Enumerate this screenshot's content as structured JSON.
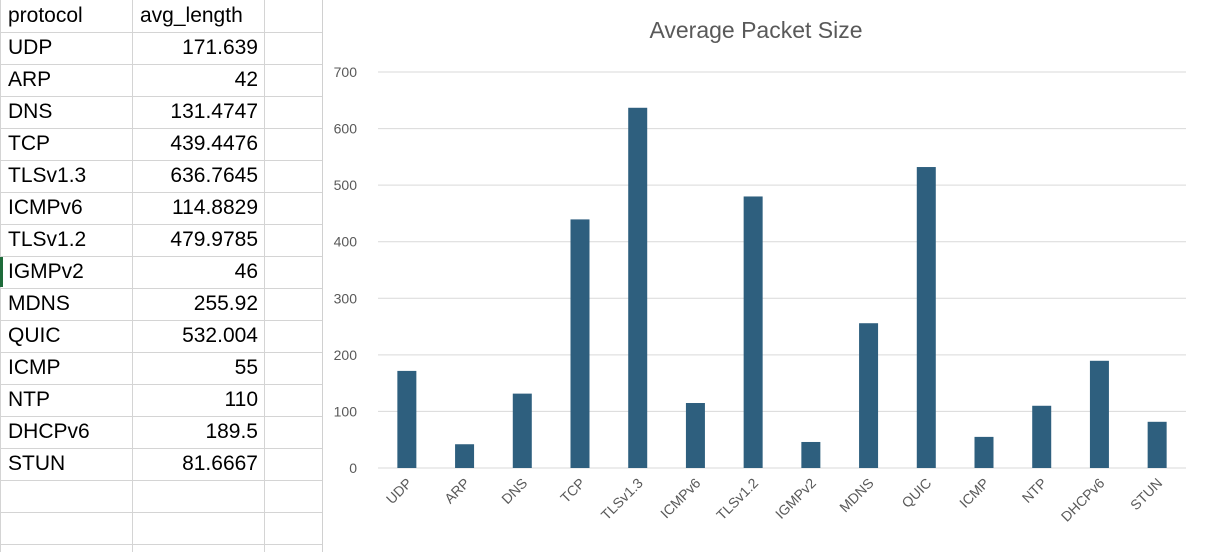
{
  "sheet": {
    "headers": [
      "protocol",
      "avg_length"
    ],
    "rows": [
      {
        "protocol": "UDP",
        "avg_length": "171.639"
      },
      {
        "protocol": "ARP",
        "avg_length": "42"
      },
      {
        "protocol": "DNS",
        "avg_length": "131.4747"
      },
      {
        "protocol": "TCP",
        "avg_length": "439.4476"
      },
      {
        "protocol": "TLSv1.3",
        "avg_length": "636.7645"
      },
      {
        "protocol": "ICMPv6",
        "avg_length": "114.8829"
      },
      {
        "protocol": "TLSv1.2",
        "avg_length": "479.9785"
      },
      {
        "protocol": "IGMPv2",
        "avg_length": "46"
      },
      {
        "protocol": "MDNS",
        "avg_length": "255.92"
      },
      {
        "protocol": "QUIC",
        "avg_length": "532.004"
      },
      {
        "protocol": "ICMP",
        "avg_length": "55"
      },
      {
        "protocol": "NTP",
        "avg_length": "110"
      },
      {
        "protocol": "DHCPv6",
        "avg_length": "189.5"
      },
      {
        "protocol": "STUN",
        "avg_length": "81.6667"
      }
    ]
  },
  "colors": {
    "bar": "#2e5f7e",
    "gridline": "#d9d9d9",
    "axis_text": "#595959",
    "title_text": "#595959"
  },
  "chart_data": {
    "type": "bar",
    "title": "Average Packet Size",
    "xlabel": "",
    "ylabel": "",
    "categories": [
      "UDP",
      "ARP",
      "DNS",
      "TCP",
      "TLSv1.3",
      "ICMPv6",
      "TLSv1.2",
      "IGMPv2",
      "MDNS",
      "QUIC",
      "ICMP",
      "NTP",
      "DHCPv6",
      "STUN"
    ],
    "values": [
      171.639,
      42,
      131.4747,
      439.4476,
      636.7645,
      114.8829,
      479.9785,
      46,
      255.92,
      532.004,
      55,
      110,
      189.5,
      81.6667
    ],
    "ylim": [
      0,
      700
    ],
    "yticks": [
      "0",
      "100",
      "200",
      "300",
      "400",
      "500",
      "600",
      "700"
    ],
    "grid": true,
    "legend": "none"
  }
}
